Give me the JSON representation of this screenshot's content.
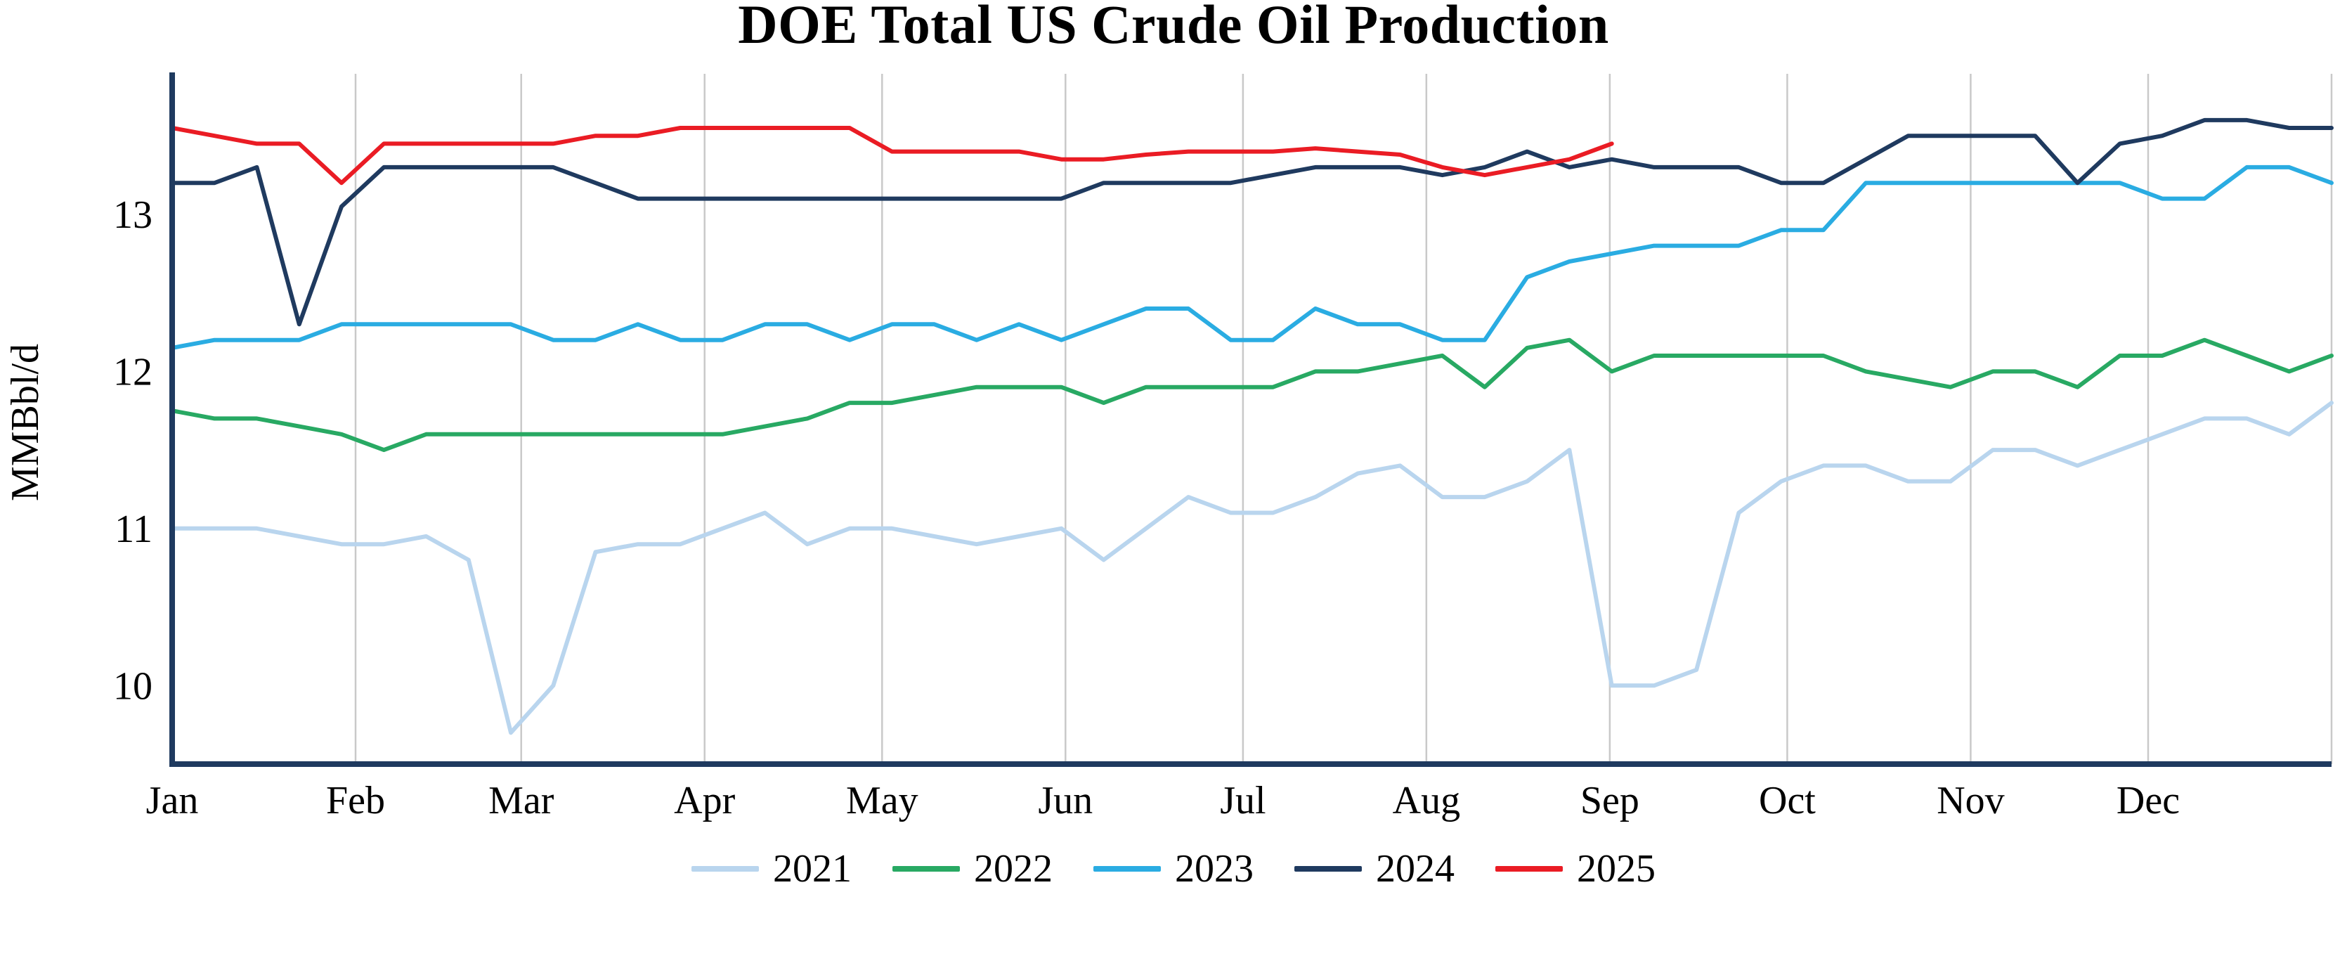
{
  "page": {
    "background": "#ffffff"
  },
  "chart_data": {
    "type": "line",
    "title": "DOE Total US Crude Oil Production",
    "ylabel": "MMBbl/d",
    "xlabel": "",
    "x_axis": {
      "tick_labels": [
        "Jan",
        "Feb",
        "Mar",
        "Apr",
        "May",
        "Jun",
        "Jul",
        "Aug",
        "Sep",
        "Oct",
        "Nov",
        "Dec"
      ],
      "month_days": [
        31,
        28,
        31,
        30,
        31,
        30,
        31,
        31,
        30,
        31,
        30,
        31
      ],
      "points_per_full_year": 52,
      "unit": "weekly observations"
    },
    "y_axis": {
      "ticks": [
        10,
        11,
        12,
        13
      ],
      "min": 9.5,
      "max": 13.85
    },
    "grid": {
      "vertical_month_lines": true,
      "horizontal_lines": false
    },
    "colors": {
      "axis": "#1f3a5f",
      "gridline": "#c9c9c9",
      "text": "#000000"
    },
    "legend": {
      "position": "bottom-center",
      "entries": [
        "2021",
        "2022",
        "2023",
        "2024",
        "2025"
      ]
    },
    "series": [
      {
        "name": "2021",
        "color": "#b9d5ee",
        "values": [
          11.0,
          11.0,
          11.0,
          10.95,
          10.9,
          10.9,
          10.95,
          10.8,
          9.7,
          10.0,
          10.85,
          10.9,
          10.9,
          11.0,
          11.1,
          10.9,
          11.0,
          11.0,
          10.95,
          10.9,
          10.95,
          11.0,
          10.8,
          11.0,
          11.2,
          11.1,
          11.1,
          11.2,
          11.35,
          11.4,
          11.2,
          11.2,
          11.3,
          11.5,
          10.0,
          10.0,
          10.1,
          11.1,
          11.3,
          11.4,
          11.4,
          11.3,
          11.3,
          11.5,
          11.5,
          11.4,
          11.5,
          11.6,
          11.7,
          11.7,
          11.6,
          11.8
        ]
      },
      {
        "name": "2022",
        "color": "#28a963",
        "values": [
          11.75,
          11.7,
          11.7,
          11.65,
          11.6,
          11.5,
          11.6,
          11.6,
          11.6,
          11.6,
          11.6,
          11.6,
          11.6,
          11.6,
          11.65,
          11.7,
          11.8,
          11.8,
          11.85,
          11.9,
          11.9,
          11.9,
          11.8,
          11.9,
          11.9,
          11.9,
          11.9,
          12.0,
          12.0,
          12.05,
          12.1,
          11.9,
          12.15,
          12.2,
          12.0,
          12.1,
          12.1,
          12.1,
          12.1,
          12.1,
          12.0,
          11.95,
          11.9,
          12.0,
          12.0,
          11.9,
          12.1,
          12.1,
          12.2,
          12.1,
          12.0,
          12.1
        ]
      },
      {
        "name": "2023",
        "color": "#2aace2",
        "values": [
          12.15,
          12.2,
          12.2,
          12.2,
          12.3,
          12.3,
          12.3,
          12.3,
          12.3,
          12.2,
          12.2,
          12.3,
          12.2,
          12.2,
          12.3,
          12.3,
          12.2,
          12.3,
          12.3,
          12.2,
          12.3,
          12.2,
          12.3,
          12.4,
          12.4,
          12.2,
          12.2,
          12.4,
          12.3,
          12.3,
          12.2,
          12.2,
          12.6,
          12.7,
          12.75,
          12.8,
          12.8,
          12.8,
          12.9,
          12.9,
          13.2,
          13.2,
          13.2,
          13.2,
          13.2,
          13.2,
          13.2,
          13.1,
          13.1,
          13.3,
          13.3,
          13.2
        ]
      },
      {
        "name": "2024",
        "color": "#1f3a5f",
        "values": [
          13.2,
          13.2,
          13.3,
          12.3,
          13.05,
          13.3,
          13.3,
          13.3,
          13.3,
          13.3,
          13.2,
          13.1,
          13.1,
          13.1,
          13.1,
          13.1,
          13.1,
          13.1,
          13.1,
          13.1,
          13.1,
          13.1,
          13.2,
          13.2,
          13.2,
          13.2,
          13.25,
          13.3,
          13.3,
          13.3,
          13.25,
          13.3,
          13.4,
          13.3,
          13.35,
          13.3,
          13.3,
          13.3,
          13.2,
          13.2,
          13.35,
          13.5,
          13.5,
          13.5,
          13.5,
          13.2,
          13.45,
          13.5,
          13.6,
          13.6,
          13.55,
          13.55
        ]
      },
      {
        "name": "2025",
        "color": "#ea1c24",
        "values": [
          13.55,
          13.5,
          13.45,
          13.45,
          13.2,
          13.45,
          13.45,
          13.45,
          13.45,
          13.45,
          13.5,
          13.5,
          13.55,
          13.55,
          13.55,
          13.55,
          13.55,
          13.4,
          13.4,
          13.4,
          13.4,
          13.35,
          13.35,
          13.38,
          13.4,
          13.4,
          13.4,
          13.42,
          13.4,
          13.38,
          13.3,
          13.25,
          13.3,
          13.35,
          13.45
        ]
      }
    ]
  }
}
